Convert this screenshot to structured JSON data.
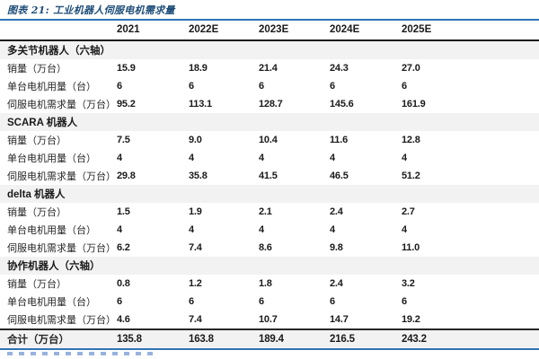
{
  "colors": {
    "title_blue": "#1F4E79",
    "rule_blue": "#2E74B5",
    "section_bg": "#F2F2F2",
    "header_line": "#1A1A1A"
  },
  "chart_data": {
    "type": "table",
    "title": "图表 21: 工业机器人伺服电机需求量",
    "row_header_label": "",
    "columns": [
      "2021",
      "2022E",
      "2023E",
      "2024E",
      "2025E"
    ],
    "sections": [
      {
        "header": "多关节机器人（六轴）",
        "rows": [
          {
            "label": "销量（万台）",
            "values": [
              "15.9",
              "18.9",
              "21.4",
              "24.3",
              "27.0"
            ]
          },
          {
            "label": "单台电机用量（台）",
            "values": [
              "6",
              "6",
              "6",
              "6",
              "6"
            ]
          },
          {
            "label": "伺服电机需求量（万台）",
            "values": [
              "95.2",
              "113.1",
              "128.7",
              "145.6",
              "161.9"
            ]
          }
        ]
      },
      {
        "header": "SCARA 机器人",
        "rows": [
          {
            "label": "销量（万台）",
            "values": [
              "7.5",
              "9.0",
              "10.4",
              "11.6",
              "12.8"
            ]
          },
          {
            "label": "单台电机用量（台）",
            "values": [
              "4",
              "4",
              "4",
              "4",
              "4"
            ]
          },
          {
            "label": "伺服电机需求量（万台）",
            "values": [
              "29.8",
              "35.8",
              "41.5",
              "46.5",
              "51.2"
            ]
          }
        ]
      },
      {
        "header": "delta 机器人",
        "rows": [
          {
            "label": "销量（万台）",
            "values": [
              "1.5",
              "1.9",
              "2.1",
              "2.4",
              "2.7"
            ]
          },
          {
            "label": "单台电机用量（台）",
            "values": [
              "4",
              "4",
              "4",
              "4",
              "4"
            ]
          },
          {
            "label": "伺服电机需求量（万台）",
            "values": [
              "6.2",
              "7.4",
              "8.6",
              "9.8",
              "11.0"
            ]
          }
        ]
      },
      {
        "header": "协作机器人（六轴）",
        "rows": [
          {
            "label": "销量（万台）",
            "values": [
              "0.8",
              "1.2",
              "1.8",
              "2.4",
              "3.2"
            ]
          },
          {
            "label": "单台电机用量（台）",
            "values": [
              "6",
              "6",
              "6",
              "6",
              "6"
            ]
          },
          {
            "label": "伺服电机需求量（万台）",
            "values": [
              "4.6",
              "7.4",
              "10.7",
              "14.7",
              "19.2"
            ]
          }
        ]
      }
    ],
    "total": {
      "label": "合计（万台）",
      "values": [
        "135.8",
        "163.8",
        "189.4",
        "216.5",
        "243.2"
      ]
    }
  }
}
